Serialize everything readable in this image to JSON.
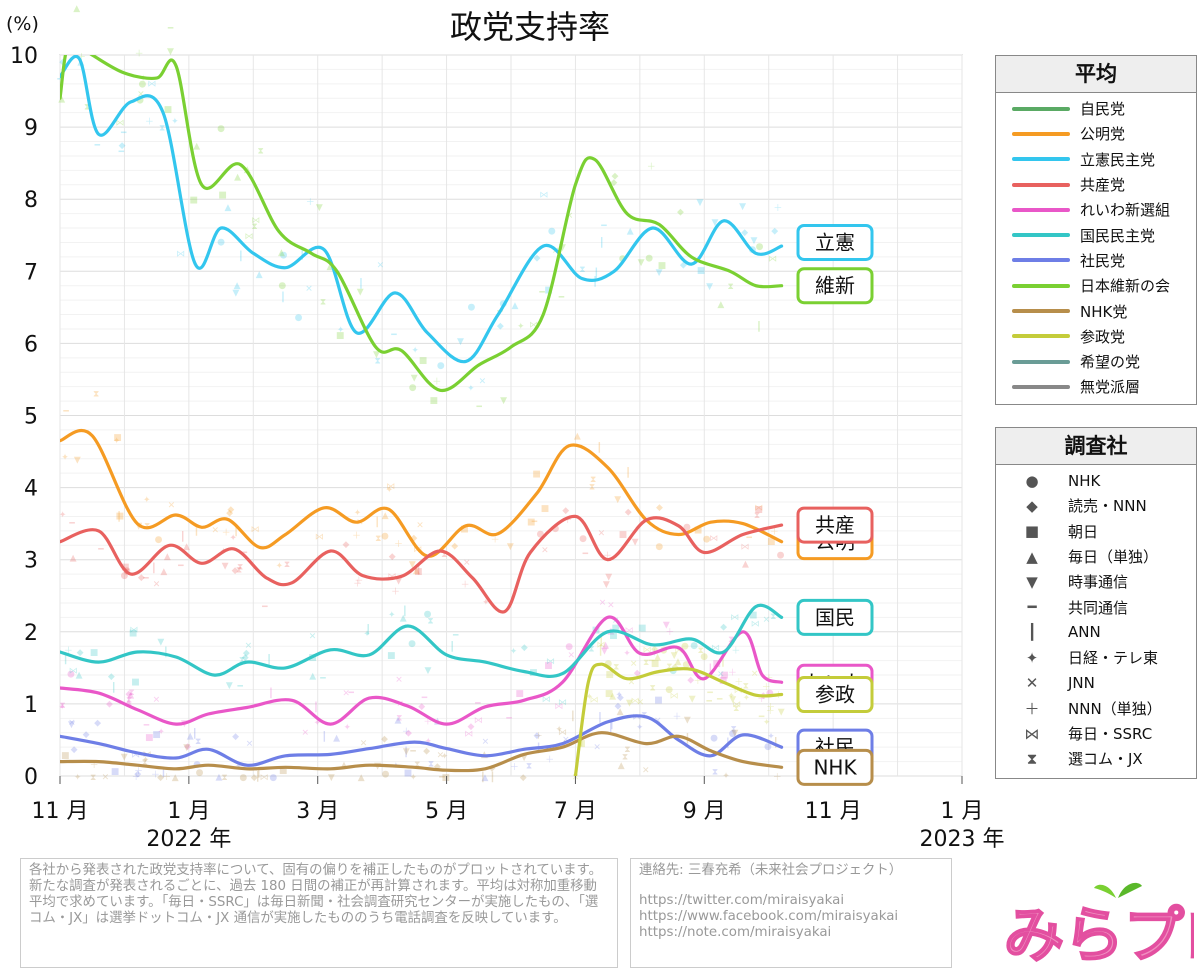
{
  "chart_data": {
    "type": "line",
    "title": "政党支持率",
    "ylabel": "(%)",
    "ylim": [
      0,
      10
    ],
    "yticks": [
      "0",
      "1",
      "2",
      "3",
      "4",
      "5",
      "6",
      "7",
      "8",
      "9",
      "10"
    ],
    "xrange_months": [
      0,
      14
    ],
    "xticks": [
      {
        "m": 0,
        "label": "11 月"
      },
      {
        "m": 2,
        "label": "1 月"
      },
      {
        "m": 4,
        "label": "3 月"
      },
      {
        "m": 6,
        "label": "5 月"
      },
      {
        "m": 8,
        "label": "7 月"
      },
      {
        "m": 10,
        "label": "9 月"
      },
      {
        "m": 12,
        "label": "11 月"
      },
      {
        "m": 14,
        "label": "1 月"
      }
    ],
    "year_labels": [
      {
        "m": 2,
        "label": "2022 年"
      },
      {
        "m": 14,
        "label": "2023 年"
      }
    ],
    "series": [
      {
        "name": "自民党",
        "color": "#5aaa64",
        "points": []
      },
      {
        "name": "公明党",
        "color": "#f59b23",
        "tag": "公明",
        "tag_y": 3.25,
        "points": [
          [
            0,
            4.65
          ],
          [
            0.5,
            4.72
          ],
          [
            1.2,
            3.5
          ],
          [
            1.8,
            3.62
          ],
          [
            2.2,
            3.45
          ],
          [
            2.6,
            3.56
          ],
          [
            3.1,
            3.17
          ],
          [
            3.5,
            3.35
          ],
          [
            4.1,
            3.72
          ],
          [
            4.6,
            3.52
          ],
          [
            5.1,
            3.7
          ],
          [
            5.7,
            3.05
          ],
          [
            6.3,
            3.47
          ],
          [
            6.8,
            3.36
          ],
          [
            7.4,
            3.92
          ],
          [
            7.9,
            4.58
          ],
          [
            8.5,
            4.28
          ],
          [
            9.1,
            3.55
          ],
          [
            9.6,
            3.35
          ],
          [
            10.1,
            3.52
          ],
          [
            10.6,
            3.5
          ],
          [
            11.2,
            3.25
          ]
        ]
      },
      {
        "name": "立憲民主党",
        "color": "#33c6ee",
        "tag": "立憲",
        "tag_y": 7.4,
        "points": [
          [
            0,
            9.7
          ],
          [
            0.3,
            9.95
          ],
          [
            0.6,
            8.9
          ],
          [
            1.1,
            9.35
          ],
          [
            1.6,
            9.2
          ],
          [
            2.1,
            7.1
          ],
          [
            2.5,
            7.6
          ],
          [
            3.0,
            7.25
          ],
          [
            3.5,
            7.05
          ],
          [
            4.1,
            7.3
          ],
          [
            4.6,
            6.15
          ],
          [
            5.2,
            6.7
          ],
          [
            5.7,
            6.15
          ],
          [
            6.3,
            5.75
          ],
          [
            6.8,
            6.4
          ],
          [
            7.5,
            7.35
          ],
          [
            8.1,
            6.9
          ],
          [
            8.6,
            7.0
          ],
          [
            9.2,
            7.6
          ],
          [
            9.8,
            7.1
          ],
          [
            10.3,
            7.7
          ],
          [
            10.8,
            7.25
          ],
          [
            11.2,
            7.35
          ]
        ]
      },
      {
        "name": "共産党",
        "color": "#e8615f",
        "tag": "共産",
        "tag_y": 3.48,
        "points": [
          [
            0,
            3.25
          ],
          [
            0.6,
            3.4
          ],
          [
            1.1,
            2.8
          ],
          [
            1.7,
            3.2
          ],
          [
            2.2,
            2.95
          ],
          [
            2.7,
            3.15
          ],
          [
            3.2,
            2.75
          ],
          [
            3.6,
            2.68
          ],
          [
            4.2,
            3.12
          ],
          [
            4.7,
            2.78
          ],
          [
            5.3,
            2.77
          ],
          [
            5.9,
            3.12
          ],
          [
            6.4,
            2.75
          ],
          [
            6.9,
            2.28
          ],
          [
            7.3,
            3.1
          ],
          [
            8.0,
            3.6
          ],
          [
            8.5,
            3.0
          ],
          [
            9.1,
            3.55
          ],
          [
            9.6,
            3.47
          ],
          [
            10.0,
            3.1
          ],
          [
            10.6,
            3.35
          ],
          [
            11.2,
            3.48
          ]
        ]
      },
      {
        "name": "れいわ新選組",
        "color": "#e957c8",
        "tag": "れいわ",
        "tag_y": 1.3,
        "points": [
          [
            0,
            1.22
          ],
          [
            0.6,
            1.15
          ],
          [
            1.2,
            0.92
          ],
          [
            1.8,
            0.72
          ],
          [
            2.3,
            0.86
          ],
          [
            2.9,
            0.95
          ],
          [
            3.6,
            1.05
          ],
          [
            4.2,
            0.72
          ],
          [
            4.8,
            1.08
          ],
          [
            5.4,
            0.97
          ],
          [
            6.0,
            0.72
          ],
          [
            6.6,
            0.96
          ],
          [
            7.2,
            1.05
          ],
          [
            7.8,
            1.3
          ],
          [
            8.5,
            2.2
          ],
          [
            9.0,
            1.7
          ],
          [
            9.6,
            1.78
          ],
          [
            10.0,
            1.35
          ],
          [
            10.6,
            2.0
          ],
          [
            10.9,
            1.4
          ],
          [
            11.2,
            1.3
          ]
        ]
      },
      {
        "name": "国民民主党",
        "color": "#33c6c6",
        "tag": "国民",
        "tag_y": 2.2,
        "points": [
          [
            0,
            1.72
          ],
          [
            0.6,
            1.58
          ],
          [
            1.2,
            1.72
          ],
          [
            1.8,
            1.65
          ],
          [
            2.4,
            1.4
          ],
          [
            2.9,
            1.58
          ],
          [
            3.5,
            1.5
          ],
          [
            4.2,
            1.75
          ],
          [
            4.8,
            1.68
          ],
          [
            5.4,
            2.08
          ],
          [
            6.0,
            1.68
          ],
          [
            6.6,
            1.58
          ],
          [
            7.2,
            1.45
          ],
          [
            7.8,
            1.42
          ],
          [
            8.5,
            2.0
          ],
          [
            9.2,
            1.82
          ],
          [
            9.8,
            1.9
          ],
          [
            10.3,
            1.72
          ],
          [
            10.8,
            2.35
          ],
          [
            11.2,
            2.2
          ]
        ]
      },
      {
        "name": "社民党",
        "color": "#6e7ee6",
        "tag": "社民",
        "tag_y": 0.4,
        "points": [
          [
            0,
            0.55
          ],
          [
            0.6,
            0.45
          ],
          [
            1.2,
            0.32
          ],
          [
            1.8,
            0.25
          ],
          [
            2.3,
            0.37
          ],
          [
            2.9,
            0.15
          ],
          [
            3.5,
            0.28
          ],
          [
            4.2,
            0.3
          ],
          [
            4.8,
            0.38
          ],
          [
            5.5,
            0.47
          ],
          [
            6.0,
            0.38
          ],
          [
            6.6,
            0.28
          ],
          [
            7.2,
            0.37
          ],
          [
            7.8,
            0.45
          ],
          [
            8.5,
            0.75
          ],
          [
            9.1,
            0.82
          ],
          [
            9.6,
            0.5
          ],
          [
            10.1,
            0.28
          ],
          [
            10.6,
            0.57
          ],
          [
            11.2,
            0.4
          ]
        ]
      },
      {
        "name": "日本維新の会",
        "color": "#7ad032",
        "tag": "維新",
        "tag_y": 6.8,
        "points": [
          [
            0,
            9.4
          ],
          [
            0.15,
            10.2
          ],
          [
            0.5,
            10.0
          ],
          [
            1.0,
            9.75
          ],
          [
            1.5,
            9.68
          ],
          [
            1.8,
            9.85
          ],
          [
            2.2,
            8.2
          ],
          [
            2.8,
            8.48
          ],
          [
            3.4,
            7.55
          ],
          [
            3.9,
            7.25
          ],
          [
            4.3,
            7.0
          ],
          [
            4.9,
            5.95
          ],
          [
            5.3,
            5.9
          ],
          [
            5.9,
            5.35
          ],
          [
            6.5,
            5.7
          ],
          [
            7.0,
            5.95
          ],
          [
            7.5,
            6.4
          ],
          [
            8.0,
            8.2
          ],
          [
            8.3,
            8.55
          ],
          [
            8.8,
            7.8
          ],
          [
            9.3,
            7.65
          ],
          [
            9.8,
            7.2
          ],
          [
            10.4,
            7.0
          ],
          [
            10.8,
            6.8
          ],
          [
            11.2,
            6.8
          ]
        ]
      },
      {
        "name": "NHK党",
        "color": "#b78e4b",
        "tag": "NHK",
        "tag_y": 0.12,
        "points": [
          [
            0,
            0.2
          ],
          [
            0.6,
            0.2
          ],
          [
            1.2,
            0.15
          ],
          [
            1.8,
            0.1
          ],
          [
            2.3,
            0.15
          ],
          [
            2.9,
            0.1
          ],
          [
            3.5,
            0.12
          ],
          [
            4.2,
            0.1
          ],
          [
            4.8,
            0.15
          ],
          [
            5.5,
            0.12
          ],
          [
            6.0,
            0.08
          ],
          [
            6.6,
            0.1
          ],
          [
            7.2,
            0.3
          ],
          [
            7.8,
            0.4
          ],
          [
            8.4,
            0.6
          ],
          [
            9.1,
            0.45
          ],
          [
            9.6,
            0.55
          ],
          [
            10.1,
            0.35
          ],
          [
            10.6,
            0.2
          ],
          [
            11.2,
            0.12
          ]
        ]
      },
      {
        "name": "参政党",
        "color": "#c4cc3a",
        "tag": "参政",
        "tag_y": 1.13,
        "points": [
          [
            8.0,
            0.0
          ],
          [
            8.2,
            1.3
          ],
          [
            8.4,
            1.55
          ],
          [
            8.8,
            1.35
          ],
          [
            9.3,
            1.45
          ],
          [
            9.8,
            1.48
          ],
          [
            10.3,
            1.3
          ],
          [
            10.8,
            1.12
          ],
          [
            11.2,
            1.13
          ]
        ]
      },
      {
        "name": "希望の党",
        "color": "#6a9c96",
        "points": []
      },
      {
        "name": "無党派層",
        "color": "#888888",
        "points": []
      }
    ],
    "pollsters": [
      {
        "name": "NHK",
        "glyph": "●"
      },
      {
        "name": "読売・NNN",
        "glyph": "◆"
      },
      {
        "name": "朝日",
        "glyph": "■"
      },
      {
        "name": "毎日（単独）",
        "glyph": "▲"
      },
      {
        "name": "時事通信",
        "glyph": "▼"
      },
      {
        "name": "共同通信",
        "glyph": "━"
      },
      {
        "name": "ANN",
        "glyph": "┃"
      },
      {
        "name": "日経・テレ東",
        "glyph": "✦"
      },
      {
        "name": "JNN",
        "glyph": "✕"
      },
      {
        "name": "NNN（単独）",
        "glyph": "＋"
      },
      {
        "name": "毎日・SSRC",
        "glyph": "⋈"
      },
      {
        "name": "選コム・JX",
        "glyph": "⧗"
      }
    ]
  },
  "legend": {
    "average_title": "平均",
    "pollster_title": "調査社"
  },
  "notes": {
    "description": "各社から発表された政党支持率について、固有の偏りを補正したものがプロットされています。新たな調査が発表されるごとに、過去 180 日間の補正が再計算されます。平均は対称加重移動平均で求めています。「毎日・SSRC」は毎日新聞・社会調査研究センターが実施したもの、「選コム・JX」は選挙ドットコム・JX 通信が実施したもののうち電話調査を反映しています。",
    "contact_label": "連絡先: 三春充希（未来社会プロジェクト）",
    "links": [
      "https://twitter.com/miraisyakai",
      "https://www.facebook.com/miraisyakai",
      "https://note.com/miraisyakai"
    ]
  },
  "logo": {
    "text": "みらプロ"
  }
}
